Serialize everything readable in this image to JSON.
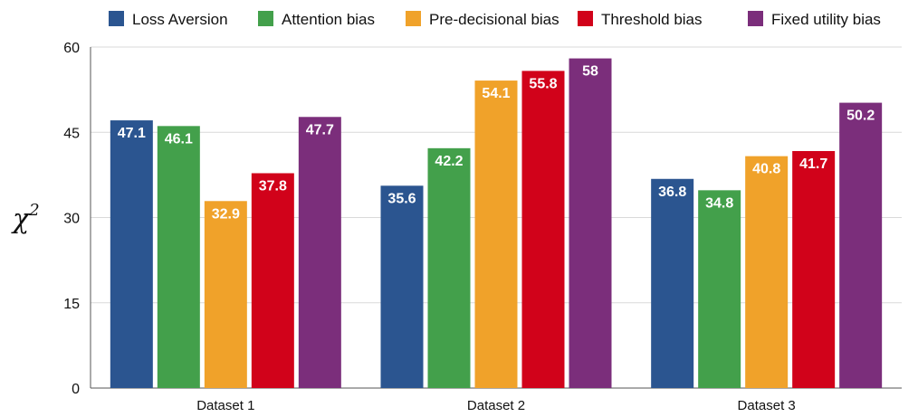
{
  "chart_data": {
    "type": "bar",
    "title": "",
    "xlabel": "",
    "ylabel": "χ",
    "ylabel_superscript": "2",
    "ylim": [
      0,
      60
    ],
    "yticks": [
      0,
      15,
      30,
      45,
      60
    ],
    "grid": true,
    "legend_position": "top",
    "categories": [
      "Dataset 1",
      "Dataset 2",
      "Dataset 3"
    ],
    "series": [
      {
        "name": "Loss Aversion",
        "color": "#2b5590",
        "values": [
          47.1,
          35.6,
          36.8
        ],
        "labels": [
          "47.1",
          "35.6",
          "36.8"
        ]
      },
      {
        "name": "Attention bias",
        "color": "#43a04b",
        "values": [
          46.1,
          42.2,
          34.8
        ],
        "labels": [
          "46.1",
          "42.2",
          "34.8"
        ]
      },
      {
        "name": "Pre-decisional bias",
        "color": "#f0a22a",
        "values": [
          32.9,
          54.1,
          40.8
        ],
        "labels": [
          "32.9",
          "54.1",
          "40.8"
        ]
      },
      {
        "name": "Threshold bias",
        "color": "#d1021a",
        "values": [
          37.8,
          55.8,
          41.7
        ],
        "labels": [
          "37.8",
          "55.8",
          "41.7"
        ]
      },
      {
        "name": "Fixed utility bias",
        "color": "#7b2e7b",
        "values": [
          47.7,
          58,
          50.2
        ],
        "labels": [
          "47.7",
          "58",
          "50.2"
        ]
      }
    ]
  }
}
